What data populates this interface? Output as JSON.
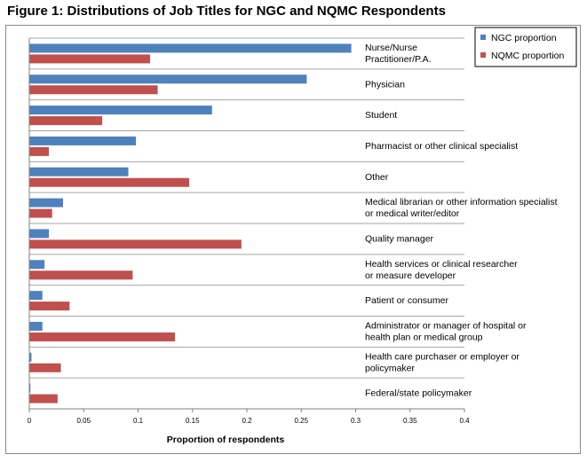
{
  "chart_data": {
    "type": "bar",
    "orientation": "horizontal",
    "title": "Figure 1: Distributions of Job Titles for NGC and NQMC Respondents",
    "xlabel": "Proportion of respondents",
    "ylabel": "",
    "xlim": [
      0,
      0.4
    ],
    "xticks": [
      "0",
      "0.05",
      "0.1",
      "0.15",
      "0.2",
      "0.25",
      "0.3",
      "0.35",
      "0.4"
    ],
    "grid": "horizontal separators",
    "legend_position": "top-right",
    "categories": [
      [
        "Nurse/Nurse",
        "Practitioner/P.A."
      ],
      [
        "Physician"
      ],
      [
        "Student"
      ],
      [
        "Pharmacist or other clinical specialist"
      ],
      [
        "Other"
      ],
      [
        "Medical librarian or other information specialist",
        "or medical writer/editor"
      ],
      [
        "Quality manager"
      ],
      [
        "Health services or clinical researcher",
        "or measure developer"
      ],
      [
        "Patient or consumer"
      ],
      [
        "Administrator or manager of hospital or",
        "health plan or medical group"
      ],
      [
        "Health care purchaser or employer or",
        "policymaker"
      ],
      [
        "Federal/state policymaker"
      ]
    ],
    "series": [
      {
        "name": "NGC proportion",
        "color": "#4F81BD",
        "values": [
          0.296,
          0.255,
          0.168,
          0.098,
          0.091,
          0.031,
          0.018,
          0.014,
          0.012,
          0.012,
          0.002,
          0.001
        ]
      },
      {
        "name": "NQMC proportion",
        "color": "#C0504D",
        "values": [
          0.111,
          0.118,
          0.067,
          0.018,
          0.147,
          0.021,
          0.195,
          0.095,
          0.037,
          0.134,
          0.029,
          0.026
        ]
      }
    ]
  }
}
